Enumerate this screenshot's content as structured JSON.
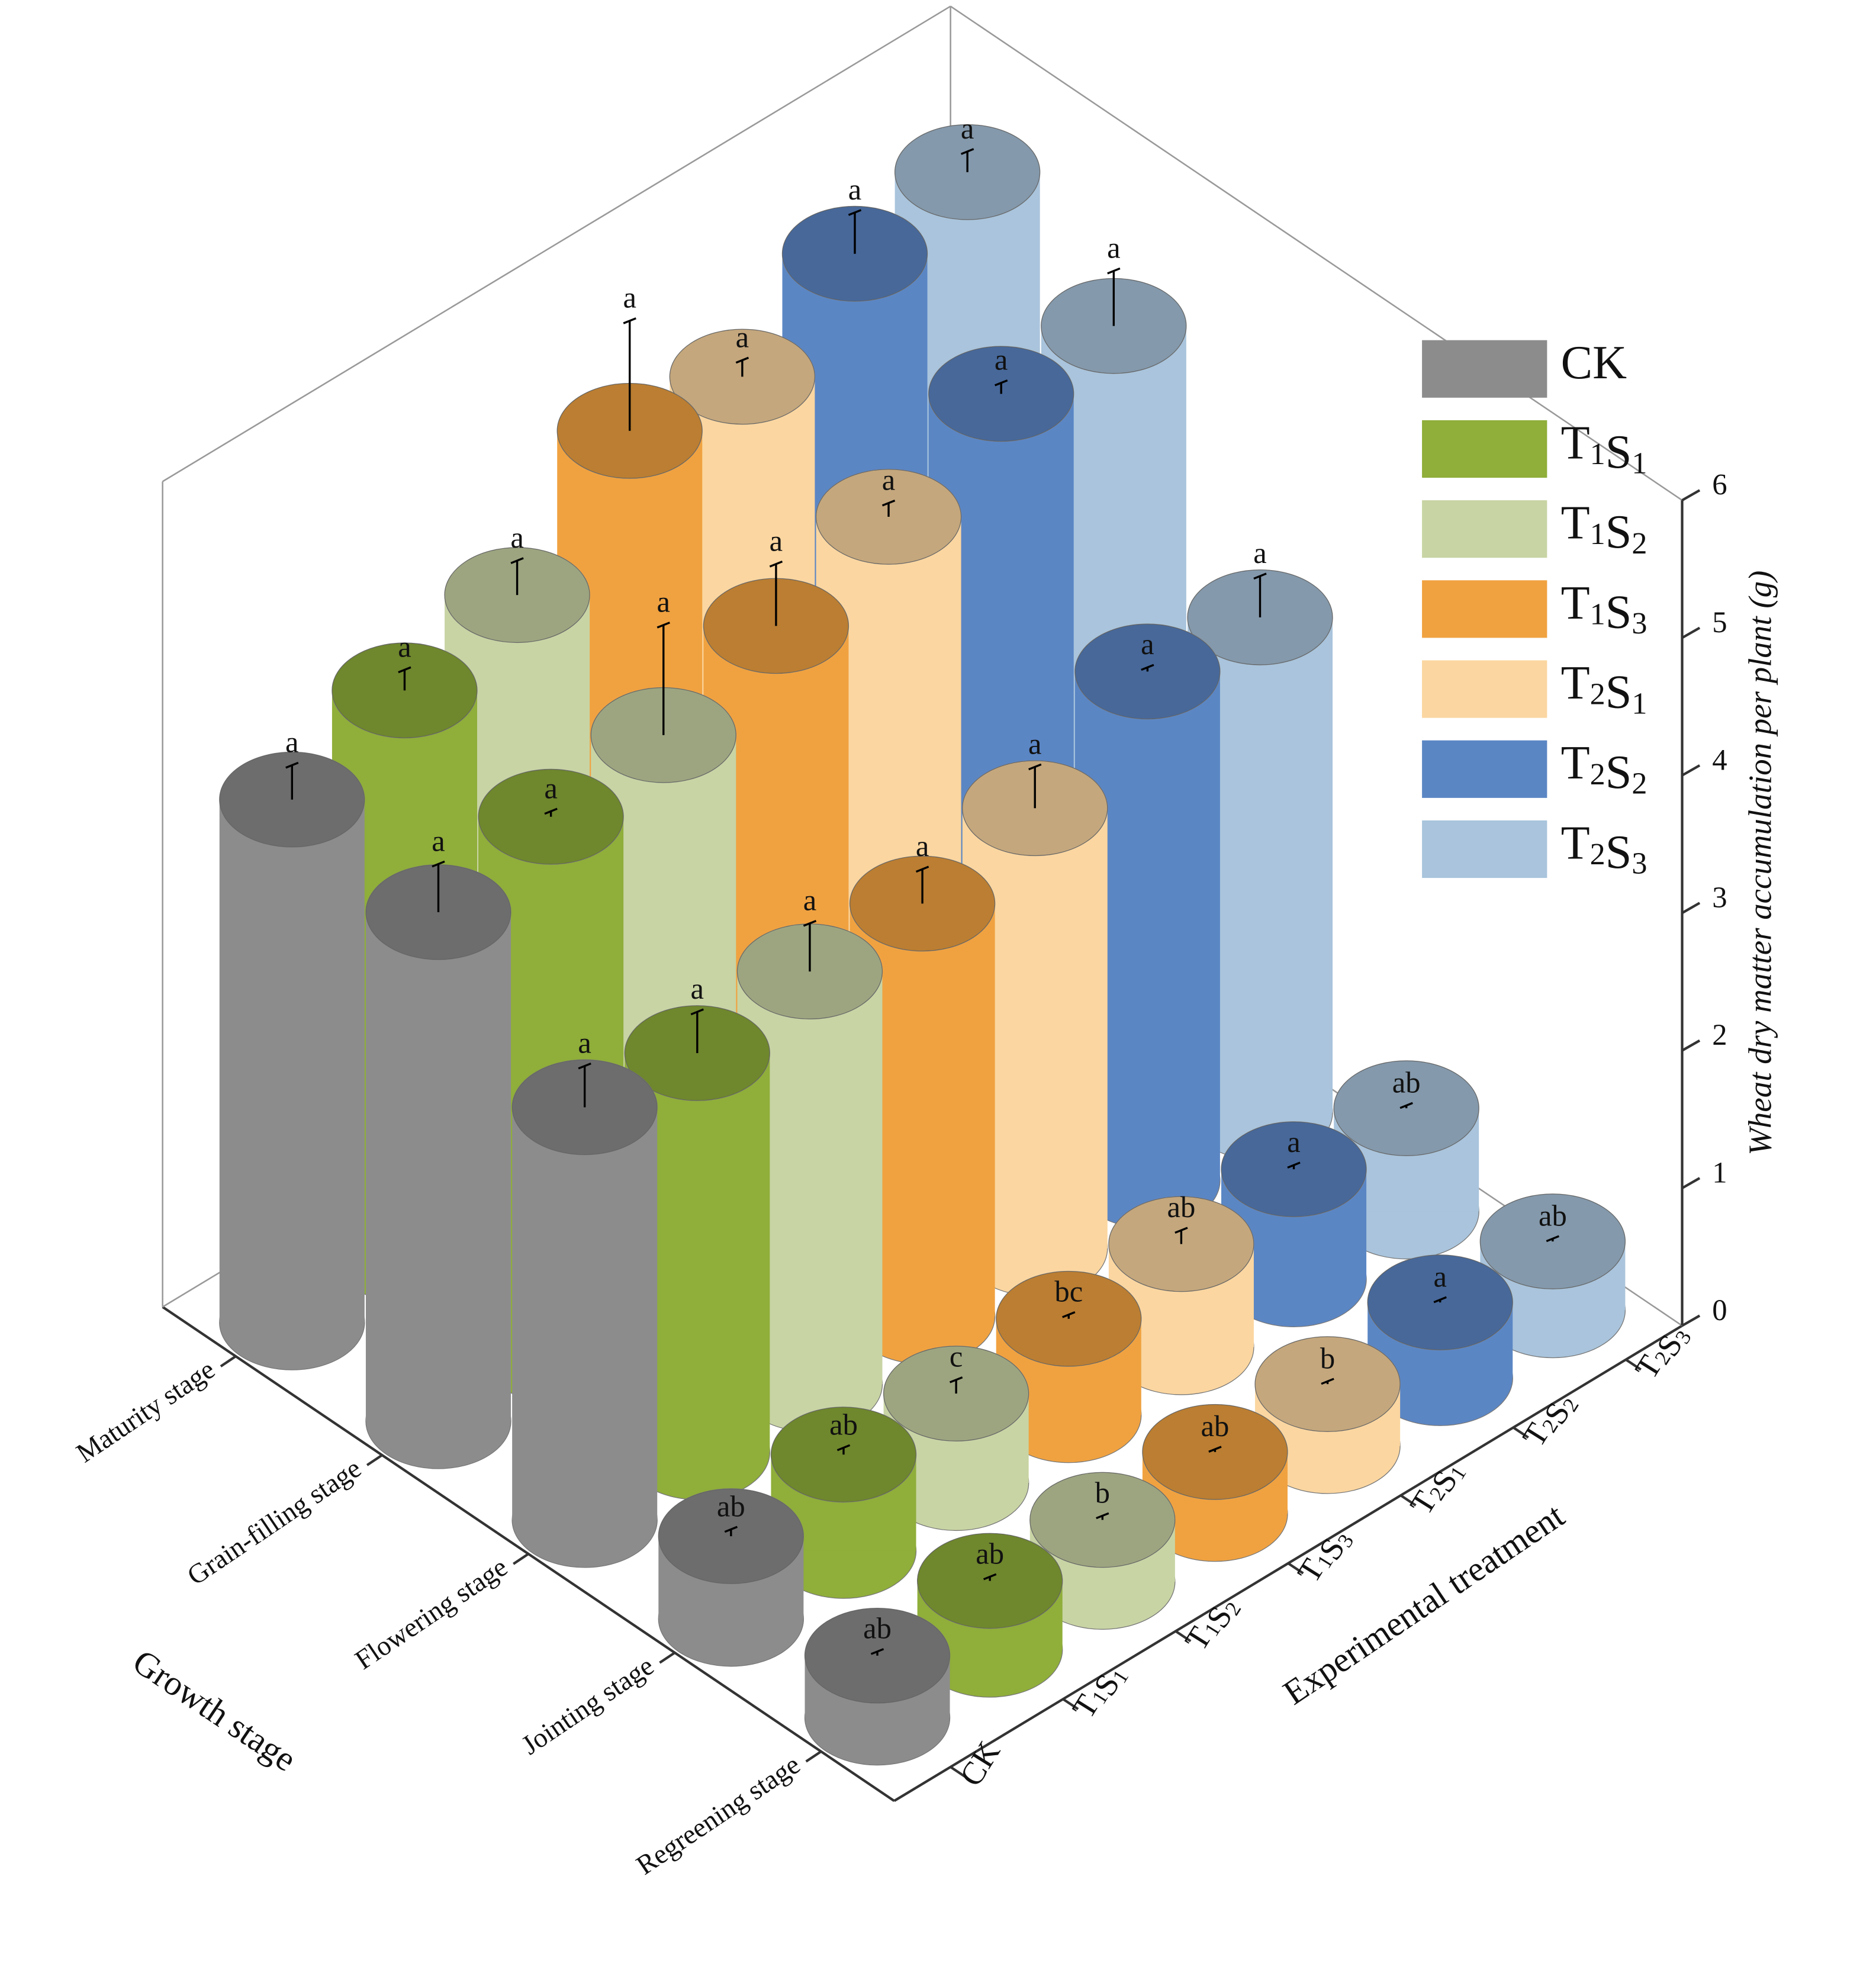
{
  "chart_data": {
    "type": "bar3d",
    "x_label": "Experimental treatment",
    "y_label": "Growth stage",
    "z_label": "Wheat dry matter accumulation per plant (g)",
    "categories": [
      "Regreening stage",
      "Jointing stage",
      "Flowering stage",
      "Grain-filling stage",
      "Maturity stage"
    ],
    "zlim": [
      0,
      6
    ],
    "zticks": [
      0,
      1,
      2,
      3,
      4,
      5,
      6
    ],
    "series": [
      {
        "name": "CK",
        "color": "#8c8c8c",
        "values": [
          0.45,
          0.6,
          3.0,
          3.7,
          3.8
        ],
        "errors": [
          0.03,
          0.05,
          0.3,
          0.35,
          0.25
        ],
        "letters": [
          "ab",
          "ab",
          "a",
          "a",
          "a"
        ]
      },
      {
        "name": "T1S1",
        "color": "#8fae3a",
        "values": [
          0.5,
          0.7,
          2.9,
          3.9,
          4.1
        ],
        "errors": [
          0.03,
          0.05,
          0.3,
          0.04,
          0.15
        ],
        "letters": [
          "ab",
          "ab",
          "a",
          "a",
          "a"
        ]
      },
      {
        "name": "T1S2",
        "color": "#c8d4a4",
        "values": [
          0.45,
          0.65,
          3.0,
          4.0,
          4.3
        ],
        "errors": [
          0.03,
          0.1,
          0.35,
          0.8,
          0.25
        ],
        "letters": [
          "b",
          "c",
          "a",
          "a",
          "a"
        ]
      },
      {
        "name": "T1S3",
        "color": "#f0a240",
        "values": [
          0.45,
          0.7,
          3.0,
          4.3,
          5.0
        ],
        "errors": [
          0.02,
          0.03,
          0.25,
          0.45,
          0.8
        ],
        "letters": [
          "ab",
          "bc",
          "a",
          "a",
          "a"
        ]
      },
      {
        "name": "T2S1",
        "color": "#fbd6a0",
        "values": [
          0.45,
          0.75,
          3.2,
          4.6,
          4.9
        ],
        "errors": [
          0.02,
          0.1,
          0.3,
          0.1,
          0.12
        ],
        "letters": [
          "b",
          "ab",
          "a",
          "a",
          "a"
        ]
      },
      {
        "name": "T2S2",
        "color": "#5b86c4",
        "values": [
          0.55,
          0.8,
          3.7,
          5.0,
          5.3
        ],
        "errors": [
          0.02,
          0.03,
          0.03,
          0.08,
          0.3
        ],
        "letters": [
          "a",
          "a",
          "a",
          "a",
          "a"
        ]
      },
      {
        "name": "T2S3",
        "color": "#a9c4dc",
        "values": [
          0.5,
          0.75,
          3.6,
          5.0,
          5.4
        ],
        "errors": [
          0.02,
          0.02,
          0.3,
          0.4,
          0.15
        ],
        "letters": [
          "ab",
          "ab",
          "a",
          "a",
          "a"
        ]
      }
    ]
  }
}
